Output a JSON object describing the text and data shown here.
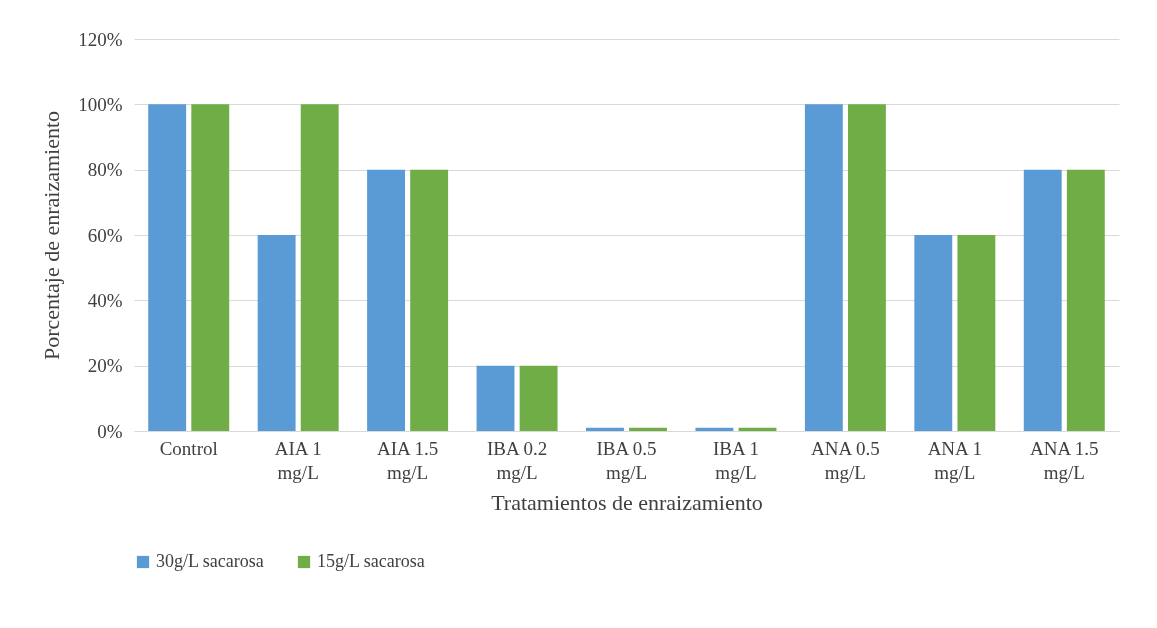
{
  "chart_data": {
    "type": "bar",
    "xlabel": "Tratamientos de enraizamiento",
    "ylabel": "Porcentaje de enraizamiento",
    "categories": [
      "Control",
      "AIA 1 mg/L",
      "AIA 1.5 mg/L",
      "IBA 0.2 mg/L",
      "IBA 0.5 mg/L",
      "IBA 1 mg/L",
      "ANA 0.5 mg/L",
      "ANA 1 mg/L",
      "ANA 1.5 mg/L"
    ],
    "series": [
      {
        "name": "30g/L sacarosa",
        "color": "#5b9bd5",
        "values": [
          100,
          60,
          80,
          20,
          1,
          1,
          100,
          60,
          80
        ]
      },
      {
        "name": "15g/L sacarosa",
        "color": "#70ad47",
        "values": [
          100,
          100,
          80,
          20,
          1,
          1,
          100,
          60,
          80
        ]
      }
    ],
    "ylim": [
      0,
      120
    ],
    "yticks": [
      {
        "value": 0,
        "label": "0%"
      },
      {
        "value": 20,
        "label": "20%"
      },
      {
        "value": 40,
        "label": "40%"
      },
      {
        "value": 60,
        "label": "60%"
      },
      {
        "value": 80,
        "label": "80%"
      },
      {
        "value": 100,
        "label": "100%"
      },
      {
        "value": 120,
        "label": "120%"
      }
    ],
    "grid": "y",
    "legend": "bottom"
  }
}
